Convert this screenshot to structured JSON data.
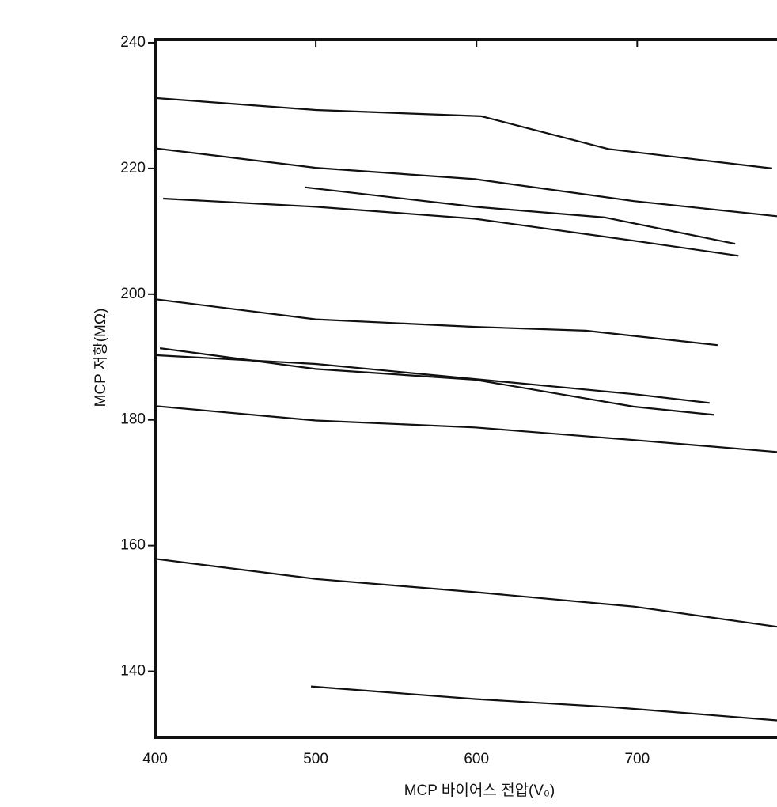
{
  "chart_data": {
    "type": "line",
    "xlabel": "MCP 바이어스 전압(V₀)",
    "ylabel": "MCP 저항(MΩ)",
    "xlim": [
      400,
      787
    ],
    "xticks": [
      400,
      500,
      600,
      700
    ],
    "ylim": [
      129.5,
      240.5
    ],
    "yticks": [
      140,
      160,
      180,
      200,
      220,
      240
    ],
    "color": "#111",
    "series": [
      {
        "x": [
          400,
          500,
          603,
          682,
          784
        ],
        "values": [
          231.2,
          229.3,
          228.3,
          223.1,
          220.0
        ]
      },
      {
        "x": [
          400,
          500,
          599,
          698,
          787
        ],
        "values": [
          223.2,
          220.1,
          218.3,
          214.8,
          212.4
        ]
      },
      {
        "x": [
          405,
          500,
          599,
          698,
          763
        ],
        "values": [
          215.2,
          213.9,
          212.0,
          208.5,
          206.1
        ]
      },
      {
        "x": [
          493,
          599,
          680,
          761
        ],
        "values": [
          217.0,
          213.9,
          212.2,
          208.0
        ]
      },
      {
        "x": [
          400,
          500,
          599,
          668,
          750
        ],
        "values": [
          199.2,
          196.0,
          194.8,
          194.2,
          191.9
        ]
      },
      {
        "x": [
          400,
          500,
          599,
          698,
          745
        ],
        "values": [
          190.3,
          188.9,
          186.5,
          184.1,
          182.7
        ]
      },
      {
        "x": [
          403,
          500,
          599,
          698,
          748
        ],
        "values": [
          191.4,
          188.1,
          186.4,
          182.1,
          180.8
        ]
      },
      {
        "x": [
          400,
          500,
          599,
          698,
          787
        ],
        "values": [
          182.2,
          179.9,
          178.8,
          176.8,
          174.9
        ]
      },
      {
        "x": [
          400,
          500,
          599,
          698,
          787
        ],
        "values": [
          157.9,
          154.7,
          152.6,
          150.3,
          147.1
        ]
      },
      {
        "x": [
          497,
          599,
          685,
          787
        ],
        "values": [
          137.6,
          135.6,
          134.3,
          132.2
        ]
      }
    ]
  }
}
